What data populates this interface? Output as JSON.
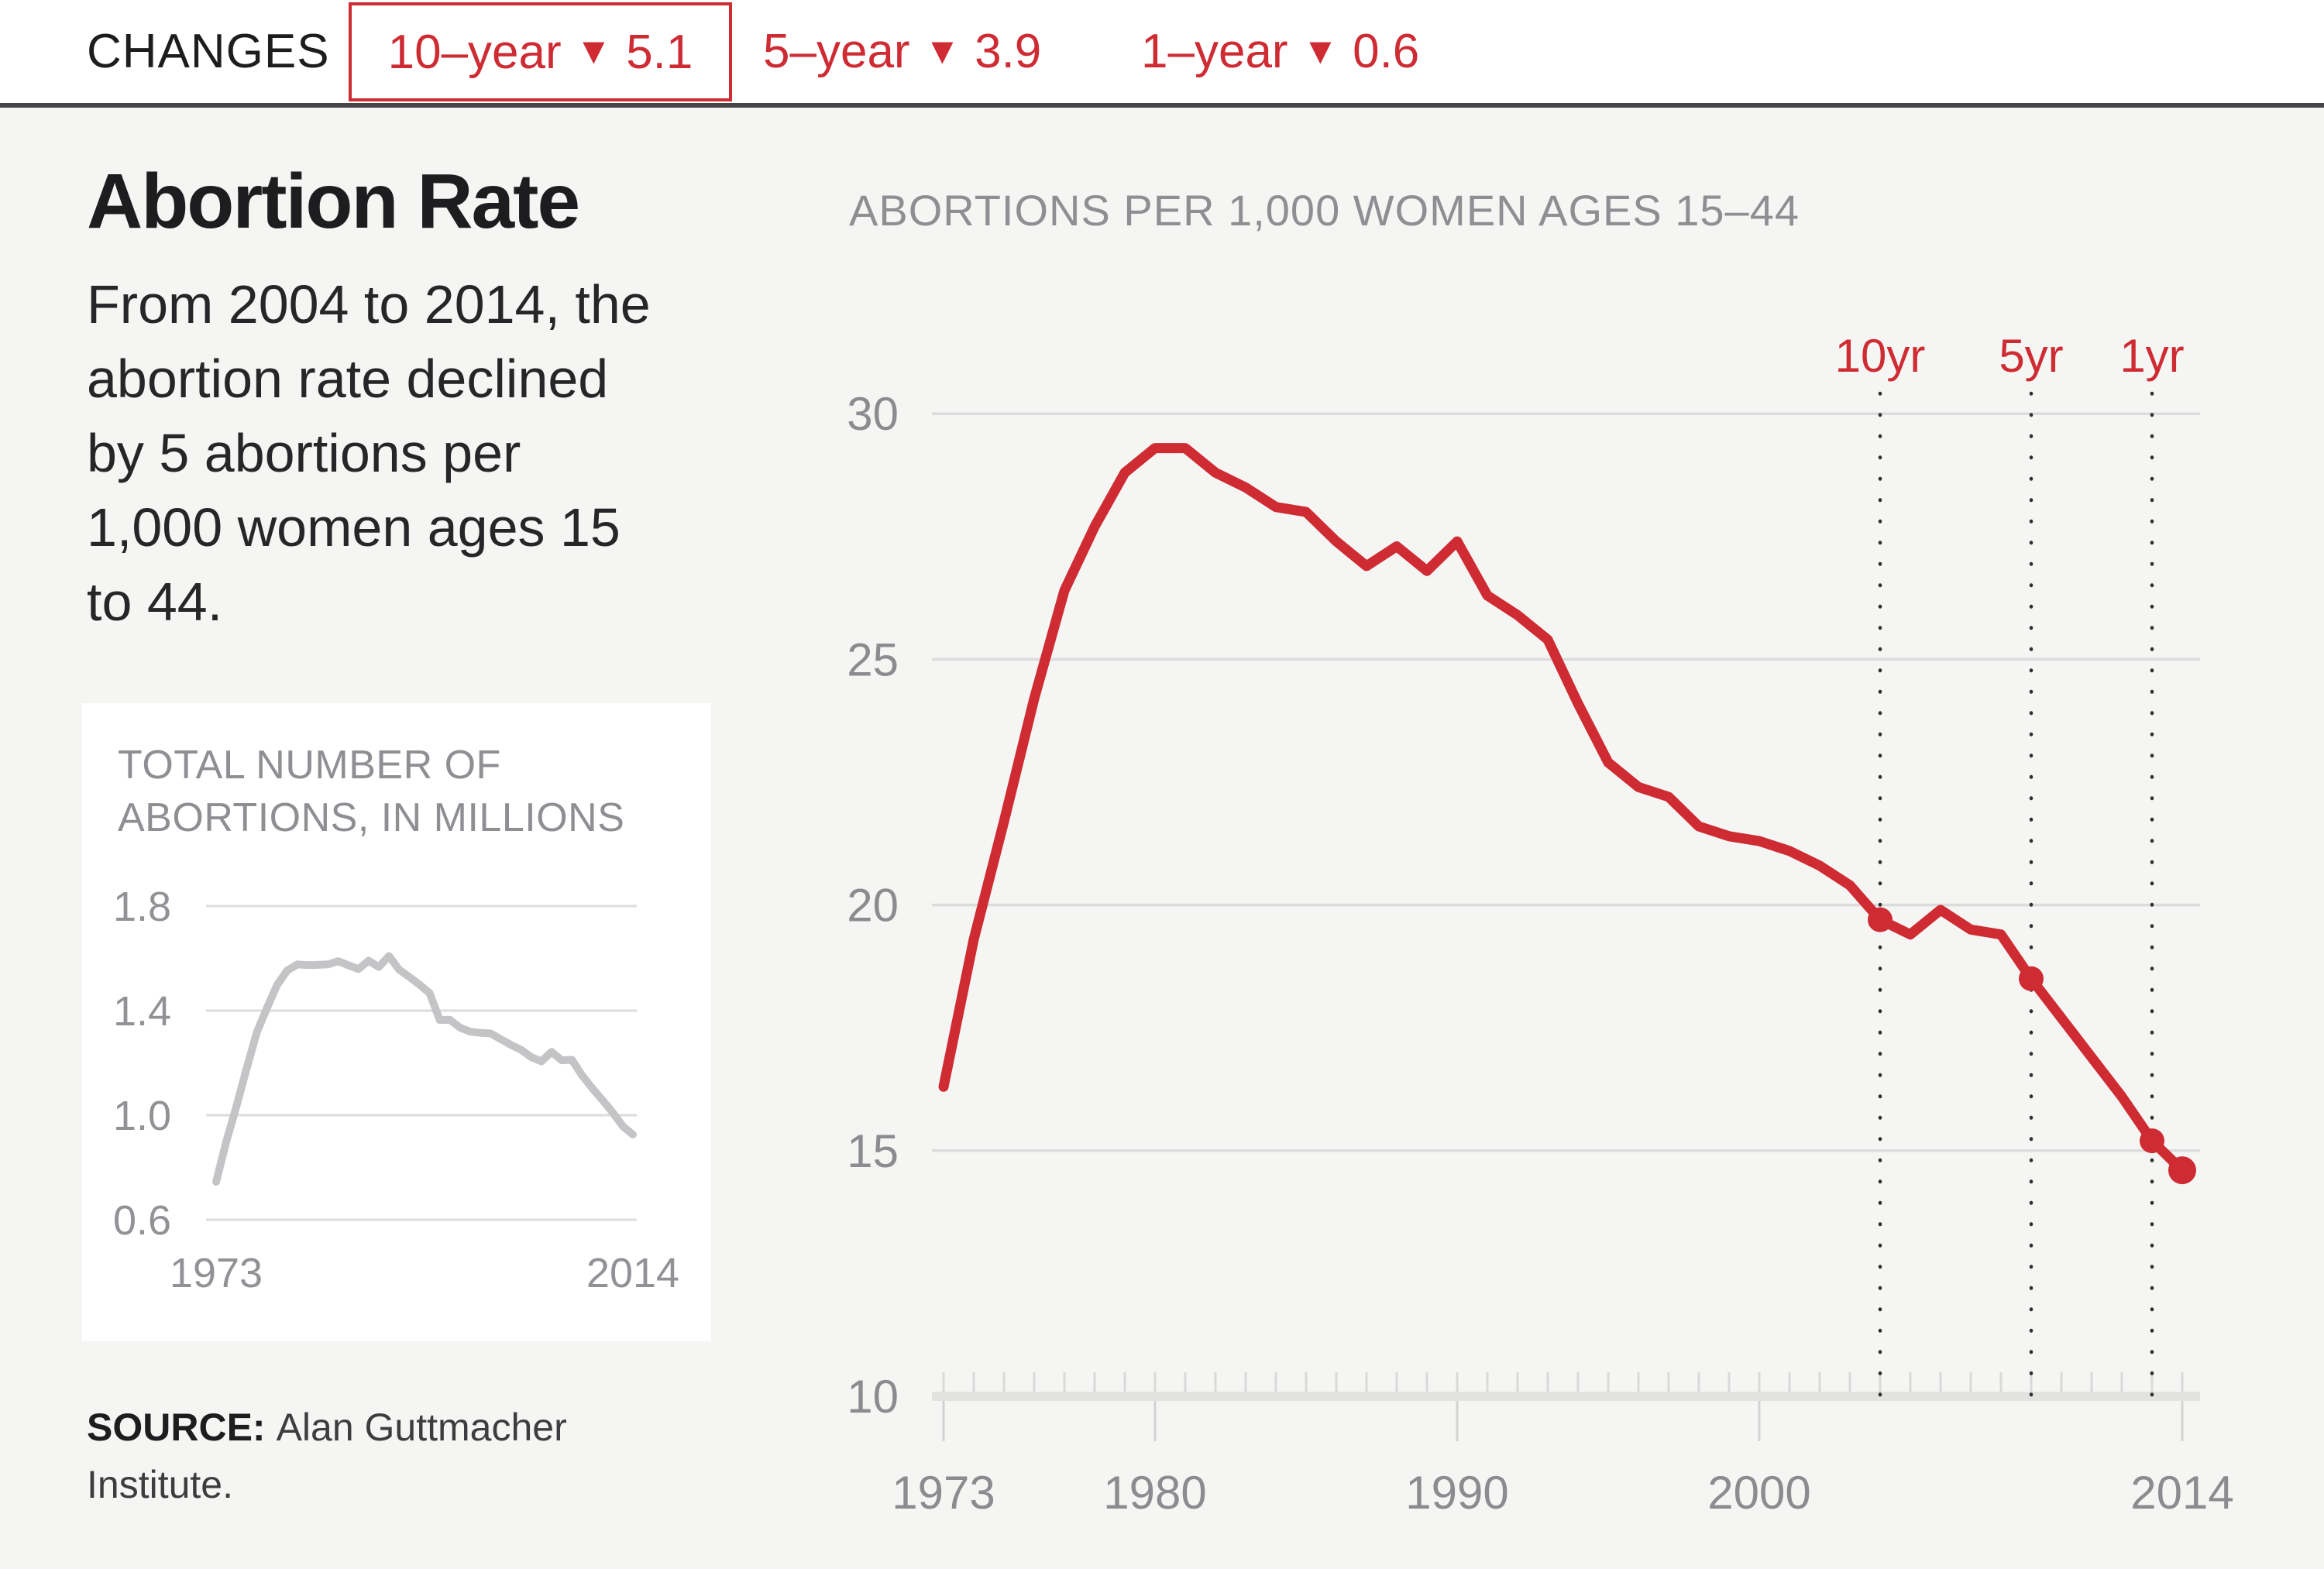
{
  "header": {
    "label": "CHANGES",
    "changes": [
      {
        "period": "10–year",
        "arrow": "▼",
        "value": "5.1",
        "boxed": true
      },
      {
        "period": "5–year",
        "arrow": "▼",
        "value": "3.9",
        "boxed": false
      },
      {
        "period": "1–year",
        "arrow": "▼",
        "value": "0.6",
        "boxed": false
      }
    ]
  },
  "sidebar": {
    "title": "Abortion Rate",
    "description_lines": [
      "From 2004 to 2014, the",
      "abortion rate declined",
      "by 5 abortions per",
      "1,000 women ages 15",
      "to 44."
    ],
    "source_label": "SOURCE:",
    "source_line1": "Alan Guttmacher",
    "source_line2": "Institute."
  },
  "colors": {
    "red": "#ce2b33",
    "background": "#f5f5f3",
    "panel": "#ffffff",
    "grid": "#dcdcdd",
    "axis_bar": "#e2e2e0",
    "tick": "#d9d9d9",
    "major_tick": "#d3d3d3",
    "label_gray": "#8b8b90",
    "title_gray": "#8e8e93",
    "inset_label_gray": "#919196",
    "inset_line": "#c4c4c6",
    "dotted_line": "#2f2f31",
    "dark_text": "#1d1d1f",
    "header_border": "#454648"
  },
  "chart_data": [
    {
      "id": "abortion-rate",
      "type": "line",
      "title": "ABORTIONS PER 1,000 WOMEN AGES 15–44",
      "x": [
        1973,
        1974,
        1975,
        1976,
        1977,
        1978,
        1979,
        1980,
        1981,
        1982,
        1983,
        1984,
        1985,
        1986,
        1987,
        1988,
        1989,
        1990,
        1991,
        1992,
        1993,
        1994,
        1995,
        1996,
        1997,
        1998,
        1999,
        2000,
        2001,
        2002,
        2003,
        2004,
        2005,
        2006,
        2007,
        2008,
        2009,
        2010,
        2011,
        2012,
        2013,
        2014
      ],
      "values": [
        16.3,
        19.3,
        21.7,
        24.2,
        26.4,
        27.7,
        28.8,
        29.3,
        29.3,
        28.8,
        28.5,
        28.1,
        28.0,
        27.4,
        26.9,
        27.3,
        26.8,
        27.4,
        26.3,
        25.9,
        25.4,
        24.1,
        22.9,
        22.4,
        22.2,
        21.6,
        21.4,
        21.3,
        21.1,
        20.8,
        20.4,
        19.7,
        19.4,
        19.9,
        19.5,
        19.4,
        18.5,
        17.7,
        16.9,
        16.1,
        15.2,
        14.6
      ],
      "ylim": [
        10,
        30
      ],
      "yticks": [
        30,
        25,
        20,
        15,
        10
      ],
      "xticks": [
        1973,
        1980,
        1990,
        2000,
        2014
      ],
      "grid": "horizontal",
      "legend_position": "none",
      "markers": [
        {
          "x": 2004,
          "y": 19.7,
          "label": "10yr"
        },
        {
          "x": 2009,
          "y": 18.5,
          "label": "5yr"
        },
        {
          "x": 2013,
          "y": 15.2,
          "label": "1yr"
        }
      ],
      "endpoint": {
        "x": 2014,
        "y": 14.6
      }
    },
    {
      "id": "total-abortions",
      "type": "line",
      "title_lines": [
        "TOTAL NUMBER OF",
        "ABORTIONS, IN MILLIONS"
      ],
      "x": [
        1973,
        1974,
        1975,
        1976,
        1977,
        1978,
        1979,
        1980,
        1981,
        1982,
        1983,
        1984,
        1985,
        1986,
        1987,
        1988,
        1989,
        1990,
        1991,
        1992,
        1993,
        1994,
        1995,
        1996,
        1997,
        1998,
        1999,
        2000,
        2001,
        2002,
        2003,
        2004,
        2005,
        2006,
        2007,
        2008,
        2009,
        2010,
        2011,
        2012,
        2013,
        2014
      ],
      "values": [
        0.745,
        0.899,
        1.034,
        1.179,
        1.317,
        1.41,
        1.498,
        1.554,
        1.577,
        1.574,
        1.575,
        1.577,
        1.589,
        1.574,
        1.559,
        1.591,
        1.567,
        1.609,
        1.557,
        1.529,
        1.5,
        1.467,
        1.364,
        1.365,
        1.335,
        1.319,
        1.315,
        1.313,
        1.291,
        1.269,
        1.25,
        1.222,
        1.206,
        1.242,
        1.21,
        1.212,
        1.152,
        1.103,
        1.058,
        1.011,
        0.958,
        0.926
      ],
      "ylim": [
        0.6,
        1.8
      ],
      "yticks": [
        1.8,
        1.4,
        1.0,
        0.6
      ],
      "xticks": [
        1973,
        2014
      ],
      "grid": "horizontal",
      "legend_position": "none"
    }
  ]
}
